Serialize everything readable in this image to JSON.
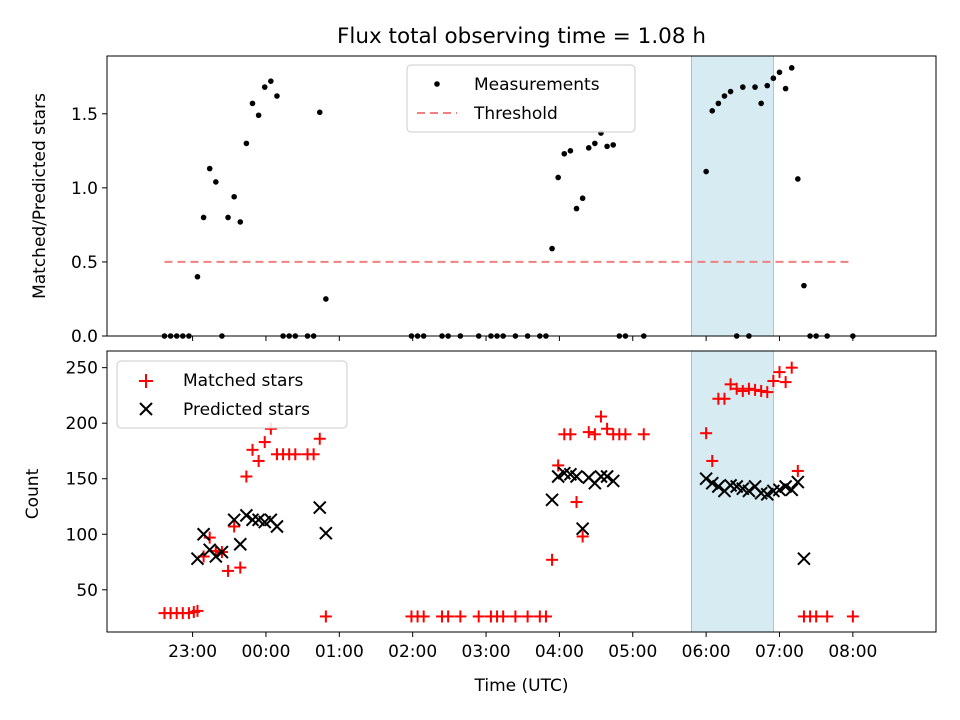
{
  "chart_data": [
    {
      "type": "scatter",
      "title": "Flux total observing time = 1.08 h",
      "ylabel": "Matched/Predicted stars",
      "xlabel": "",
      "x_unit": "minutes after 23:00 UTC",
      "xlim": [
        -70,
        608
      ],
      "ylim": [
        0,
        1.89
      ],
      "yticks": [
        0.0,
        0.5,
        1.0,
        1.5
      ],
      "ytick_labels": [
        "0.0",
        "0.5",
        "1.0",
        "1.5"
      ],
      "legend": {
        "position": "top-center",
        "entries": [
          "Measurements",
          "Threshold"
        ]
      },
      "highlight_span": [
        -12,
        55
      ],
      "highlight_span_offset": 420,
      "threshold": {
        "name": "Threshold",
        "value": 0.5,
        "x_range": [
          -23,
          540
        ],
        "color": "#f08080"
      },
      "series": [
        {
          "name": "Measurements",
          "color": "#000000",
          "points": [
            [
              -23,
              0
            ],
            [
              -18,
              0
            ],
            [
              -13,
              0
            ],
            [
              -8,
              0
            ],
            [
              -3,
              0
            ],
            [
              4,
              0.4
            ],
            [
              9,
              0.8
            ],
            [
              14,
              1.13
            ],
            [
              19,
              1.04
            ],
            [
              24,
              0
            ],
            [
              29,
              0.8
            ],
            [
              34,
              0.94
            ],
            [
              39,
              0.77
            ],
            [
              44,
              1.3
            ],
            [
              49,
              1.57
            ],
            [
              54,
              1.49
            ],
            [
              59,
              1.68
            ],
            [
              64,
              1.72
            ],
            [
              69,
              1.62
            ],
            [
              74,
              0
            ],
            [
              79,
              0
            ],
            [
              84,
              0
            ],
            [
              94,
              0
            ],
            [
              99,
              0
            ],
            [
              104,
              1.51
            ],
            [
              109,
              0.25
            ],
            [
              179,
              0
            ],
            [
              184,
              0
            ],
            [
              189,
              0
            ],
            [
              204,
              0
            ],
            [
              209,
              0
            ],
            [
              219,
              0
            ],
            [
              234,
              0
            ],
            [
              244,
              0
            ],
            [
              249,
              0
            ],
            [
              254,
              0
            ],
            [
              264,
              0
            ],
            [
              274,
              0
            ],
            [
              284,
              0
            ],
            [
              289,
              0
            ],
            [
              294,
              0.59
            ],
            [
              299,
              1.07
            ],
            [
              304,
              1.23
            ],
            [
              309,
              1.25
            ],
            [
              314,
              0.86
            ],
            [
              319,
              0.93
            ],
            [
              324,
              1.27
            ],
            [
              329,
              1.3
            ],
            [
              334,
              1.37
            ],
            [
              339,
              1.28
            ],
            [
              344,
              1.29
            ],
            [
              349,
              0
            ],
            [
              354,
              0
            ],
            [
              369,
              0
            ],
            [
              420,
              1.11
            ],
            [
              425,
              1.52
            ],
            [
              430,
              1.57
            ],
            [
              435,
              1.62
            ],
            [
              440,
              1.65
            ],
            [
              445,
              0
            ],
            [
              450,
              1.68
            ],
            [
              455,
              0
            ],
            [
              460,
              1.68
            ],
            [
              465,
              1.57
            ],
            [
              470,
              1.69
            ],
            [
              475,
              1.74
            ],
            [
              480,
              1.78
            ],
            [
              485,
              1.67
            ],
            [
              490,
              1.81
            ],
            [
              495,
              1.06
            ],
            [
              500,
              0.34
            ],
            [
              505,
              0
            ],
            [
              510,
              0
            ],
            [
              519,
              0
            ],
            [
              540,
              0
            ]
          ]
        }
      ]
    },
    {
      "type": "scatter",
      "title": "",
      "xlabel": "Time (UTC)",
      "ylabel": "Count",
      "x_unit": "minutes after 23:00 UTC",
      "xlim": [
        -70,
        608
      ],
      "ylim": [
        12,
        265
      ],
      "yticks": [
        50,
        100,
        150,
        200,
        250
      ],
      "xticks": [
        0,
        60,
        120,
        180,
        240,
        300,
        360,
        420,
        480,
        540
      ],
      "xtick_labels": [
        "23:00",
        "00:00",
        "01:00",
        "02:00",
        "03:00",
        "04:00",
        "05:00",
        "06:00",
        "07:00",
        "08:00"
      ],
      "legend": {
        "position": "top-left",
        "entries": [
          "Matched stars",
          "Predicted stars"
        ]
      },
      "highlight_span": [
        -12,
        55
      ],
      "highlight_span_offset": 420,
      "series": [
        {
          "name": "Matched stars",
          "marker": "+",
          "color": "#ff0000",
          "points": [
            [
              -23,
              29
            ],
            [
              -18,
              29
            ],
            [
              -13,
              29
            ],
            [
              -8,
              29
            ],
            [
              -3,
              29
            ],
            [
              1,
              30
            ],
            [
              4,
              31
            ],
            [
              9,
              80
            ],
            [
              14,
              97
            ],
            [
              19,
              85
            ],
            [
              24,
              84
            ],
            [
              29,
              67
            ],
            [
              34,
              107
            ],
            [
              39,
              70
            ],
            [
              44,
              152
            ],
            [
              49,
              176
            ],
            [
              54,
              166
            ],
            [
              59,
              183
            ],
            [
              64,
              195
            ],
            [
              69,
              172
            ],
            [
              74,
              172
            ],
            [
              79,
              172
            ],
            [
              84,
              172
            ],
            [
              94,
              172
            ],
            [
              99,
              172
            ],
            [
              104,
              186
            ],
            [
              109,
              26
            ],
            [
              179,
              26
            ],
            [
              184,
              26
            ],
            [
              189,
              26
            ],
            [
              204,
              26
            ],
            [
              209,
              26
            ],
            [
              219,
              26
            ],
            [
              234,
              26
            ],
            [
              244,
              26
            ],
            [
              249,
              26
            ],
            [
              254,
              26
            ],
            [
              264,
              26
            ],
            [
              274,
              26
            ],
            [
              284,
              26
            ],
            [
              289,
              26
            ],
            [
              294,
              77
            ],
            [
              299,
              162
            ],
            [
              304,
              190
            ],
            [
              309,
              190
            ],
            [
              314,
              129
            ],
            [
              319,
              98
            ],
            [
              324,
              192
            ],
            [
              329,
              190
            ],
            [
              334,
              206
            ],
            [
              339,
              195
            ],
            [
              344,
              190
            ],
            [
              349,
              190
            ],
            [
              354,
              190
            ],
            [
              369,
              190
            ],
            [
              420,
              191
            ],
            [
              425,
              166
            ],
            [
              430,
              222
            ],
            [
              435,
              222
            ],
            [
              440,
              235
            ],
            [
              445,
              231
            ],
            [
              450,
              229
            ],
            [
              455,
              231
            ],
            [
              460,
              230
            ],
            [
              465,
              229
            ],
            [
              470,
              228
            ],
            [
              475,
              238
            ],
            [
              480,
              246
            ],
            [
              485,
              237
            ],
            [
              490,
              250
            ],
            [
              495,
              157
            ],
            [
              500,
              26
            ],
            [
              505,
              26
            ],
            [
              510,
              26
            ],
            [
              519,
              26
            ],
            [
              540,
              26
            ]
          ]
        },
        {
          "name": "Predicted stars",
          "marker": "x",
          "color": "#000000",
          "points": [
            [
              4,
              78
            ],
            [
              9,
              100
            ],
            [
              14,
              86
            ],
            [
              19,
              80
            ],
            [
              24,
              84
            ],
            [
              34,
              113
            ],
            [
              39,
              91
            ],
            [
              44,
              117
            ],
            [
              49,
              113
            ],
            [
              54,
              113
            ],
            [
              59,
              111
            ],
            [
              64,
              113
            ],
            [
              69,
              107
            ],
            [
              104,
              124
            ],
            [
              109,
              101
            ],
            [
              294,
              131
            ],
            [
              299,
              152
            ],
            [
              304,
              155
            ],
            [
              309,
              154
            ],
            [
              314,
              152
            ],
            [
              319,
              105
            ],
            [
              324,
              151
            ],
            [
              329,
              146
            ],
            [
              334,
              152
            ],
            [
              339,
              152
            ],
            [
              344,
              148
            ],
            [
              420,
              150
            ],
            [
              425,
              146
            ],
            [
              430,
              143
            ],
            [
              435,
              139
            ],
            [
              440,
              144
            ],
            [
              445,
              143
            ],
            [
              450,
              141
            ],
            [
              455,
              139
            ],
            [
              460,
              143
            ],
            [
              465,
              137
            ],
            [
              470,
              136
            ],
            [
              475,
              139
            ],
            [
              480,
              140
            ],
            [
              485,
              143
            ],
            [
              490,
              140
            ],
            [
              495,
              147
            ],
            [
              500,
              78
            ]
          ]
        }
      ]
    }
  ]
}
